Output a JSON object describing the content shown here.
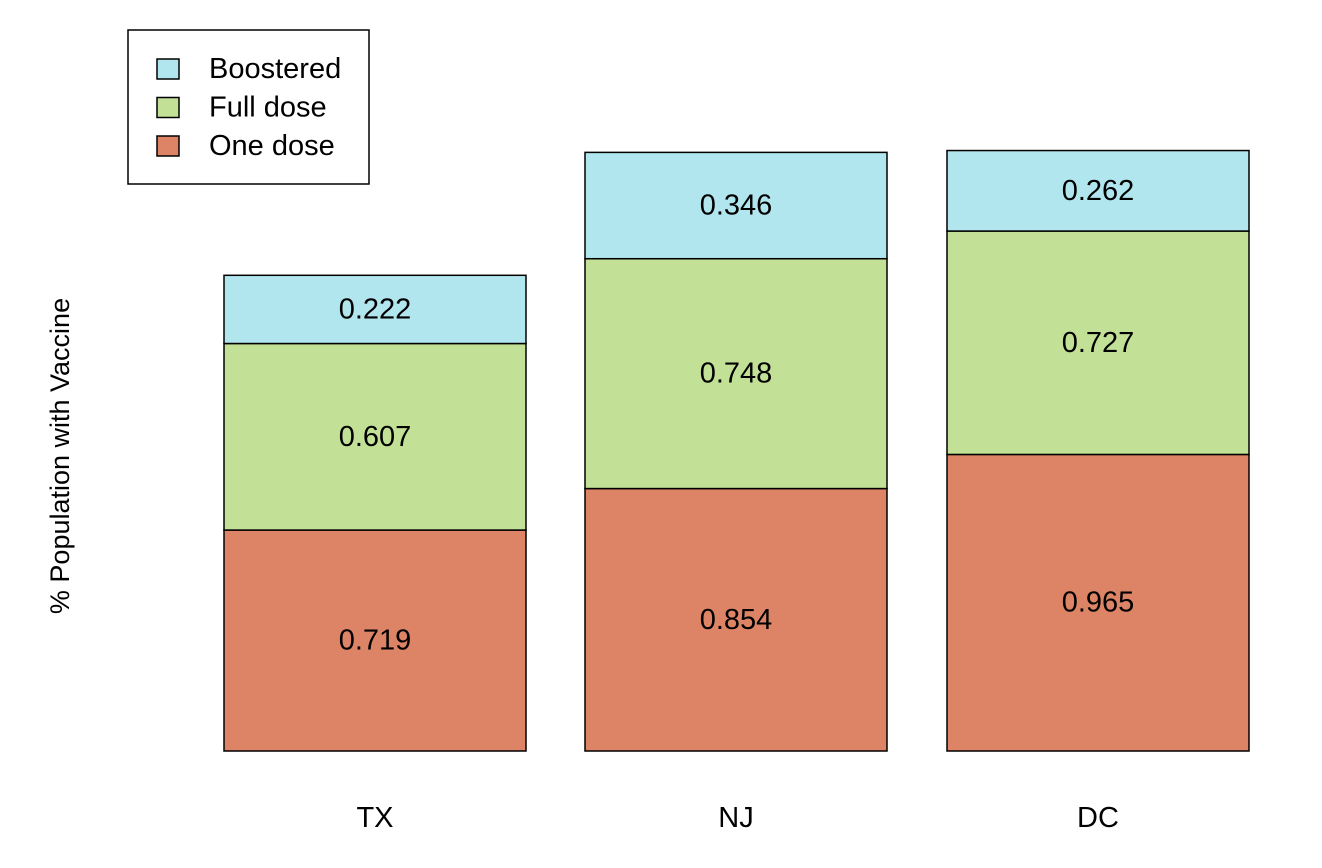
{
  "chart_data": {
    "type": "bar",
    "stacked": true,
    "categories": [
      "TX",
      "NJ",
      "DC"
    ],
    "series": [
      {
        "name": "One dose",
        "color": "#dd8466",
        "values": [
          0.719,
          0.854,
          0.965
        ]
      },
      {
        "name": "Full dose",
        "color": "#c2e197",
        "values": [
          0.607,
          0.748,
          0.727
        ]
      },
      {
        "name": "Boostered",
        "color": "#b1e6ee",
        "values": [
          0.222,
          0.346,
          0.262
        ]
      }
    ],
    "data_labels": true,
    "title": "",
    "xlabel": "",
    "ylabel": "% Population with Vaccine",
    "ylim": [
      0,
      1.95
    ],
    "grid": false,
    "legend": {
      "position": "top-left",
      "order": [
        "Boostered",
        "Full dose",
        "One dose"
      ]
    }
  }
}
